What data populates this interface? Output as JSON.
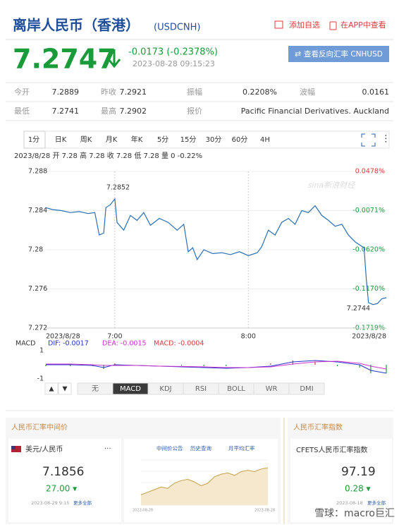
{
  "header": {
    "title": "离岸人民币（香港）",
    "code": "(USDCNH)",
    "add": "添加自选",
    "app": "在APP中查看"
  },
  "quote": {
    "price": "7.2747",
    "change": "-0.0173 (-0.2378%)",
    "time": "2023-08-28 09:15:23",
    "button": "查看反向汇率 CNHUSD"
  },
  "stats": [
    [
      "今开",
      "7.2889",
      "昨收",
      "7.2921",
      "振幅",
      "0.2208%",
      "波幅",
      "0.0161"
    ],
    [
      "最低",
      "7.2741",
      "最高",
      "7.2902",
      "报价",
      "Pacific Financial Derivatives. Auckland"
    ]
  ],
  "tabs": [
    "1分",
    "日K",
    "周K",
    "月K",
    "年K",
    "5分",
    "15分",
    "30分",
    "60分",
    "4H"
  ],
  "info": "2023/8/28 开 7.28 高 7.28 收 7.28 低 7.28 量 0 -0.22%",
  "chart_data": [
    {
      "type": "line",
      "watermark": "sina新浪财经",
      "color": "#2a6fb5",
      "grid": true,
      "x": [
        389,
        392,
        396,
        400,
        404,
        408,
        411,
        413,
        415,
        416,
        418,
        420,
        421,
        424,
        427,
        430,
        433,
        436,
        440,
        444,
        448,
        451,
        453,
        455,
        457,
        460,
        464,
        468,
        472,
        476,
        480,
        484,
        486,
        489,
        492,
        495,
        498,
        501,
        504,
        507,
        510,
        513,
        516,
        519,
        522,
        525,
        528,
        530,
        532,
        533,
        534,
        536,
        538,
        540,
        542
      ],
      "values": [
        7.2843,
        7.2841,
        7.284,
        7.2838,
        7.2839,
        7.2837,
        7.2838,
        7.2815,
        7.2817,
        7.2843,
        7.2846,
        7.2852,
        7.2828,
        7.282,
        7.2835,
        7.283,
        7.2838,
        7.2825,
        7.2832,
        7.2828,
        7.282,
        7.2826,
        7.2798,
        7.2802,
        7.279,
        7.28,
        7.2796,
        7.2797,
        7.2795,
        7.2798,
        7.2794,
        7.2797,
        7.2803,
        7.282,
        7.2815,
        7.2828,
        7.2832,
        7.2826,
        7.284,
        7.2838,
        7.2845,
        7.2835,
        7.283,
        7.2824,
        7.2826,
        7.2815,
        7.2808,
        7.2805,
        7.2802,
        7.277,
        7.2746,
        7.2744,
        7.2745,
        7.275,
        7.2751
      ],
      "xlim": [
        389,
        542
      ],
      "xticks": [
        {
          "value": 389,
          "label": "2023/8/28"
        },
        {
          "value": 420,
          "label": "7:00"
        },
        {
          "value": 480,
          "label": "8:00"
        },
        {
          "value": 542,
          "label": "2023/8/28"
        }
      ],
      "ylim": [
        7.272,
        7.288
      ],
      "yticks": [
        7.272,
        7.276,
        7.28,
        7.284,
        7.288
      ],
      "y2lim": [
        -0.1719,
        0.0478
      ],
      "y2ticks": [
        {
          "value": 0.0478,
          "label": "0.0478%"
        },
        {
          "value": -0.0071,
          "label": "-0.0071%"
        },
        {
          "value": -0.062,
          "label": "-0.0620%"
        },
        {
          "value": -0.117,
          "label": "-0.1170%"
        },
        {
          "value": -0.1719,
          "label": "-0.1719%"
        }
      ],
      "annotations": [
        {
          "label": "7.2852",
          "x": 420,
          "y": 7.2852
        },
        {
          "label": "7.2744",
          "x": 536,
          "y": 7.2744
        }
      ]
    },
    {
      "type": "macd",
      "title": "MACD",
      "dif_label": "DIF: -0.0017",
      "dea_label": "DEA: -0.0015",
      "macd_label": "MACD: -0.0004",
      "x": [
        389,
        400,
        410,
        415,
        420,
        430,
        440,
        450,
        460,
        470,
        480,
        490,
        500,
        510,
        520,
        530,
        535,
        542
      ],
      "series": [
        {
          "name": "DIF",
          "color": "#2233cc",
          "values": [
            0,
            0,
            -0.05,
            -0.2,
            0,
            -0.05,
            -0.1,
            -0.15,
            -0.2,
            -0.25,
            -0.2,
            -0.1,
            0.2,
            0.3,
            0.2,
            0,
            -0.4,
            -0.6
          ]
        },
        {
          "name": "DEA",
          "color": "#cc33cc",
          "values": [
            0.05,
            0.05,
            0,
            -0.05,
            -0.05,
            -0.05,
            -0.1,
            -0.12,
            -0.15,
            -0.2,
            -0.2,
            -0.15,
            0.05,
            0.2,
            0.25,
            0.1,
            -0.1,
            -0.3
          ]
        }
      ],
      "bars": [
        -0.1,
        -0.1,
        -0.1,
        -0.3,
        0.1,
        0,
        0,
        -0.06,
        -0.1,
        -0.1,
        0,
        0.1,
        0.3,
        0.2,
        -0.1,
        -0.2,
        -0.6,
        -0.6
      ],
      "xlim": [
        389,
        542
      ],
      "ylim": [
        -1.4,
        1.7
      ],
      "yticks": [
        1,
        -1
      ]
    },
    {
      "type": "mini-line",
      "color": "#c8a04a",
      "values": [
        7.08,
        7.1,
        7.12,
        7.14,
        7.13,
        7.17,
        7.19,
        7.2,
        7.18,
        7.15,
        7.17,
        7.22,
        7.24,
        7.25,
        7.23,
        7.26,
        7.27,
        7.26,
        7.28,
        7.29
      ],
      "ylim": [
        7.0,
        7.35
      ],
      "x_start": "2022-08-28",
      "x_end": "2023-08-28"
    }
  ],
  "indicators": [
    "无",
    "MACD",
    "KDJ",
    "RSI",
    "BOLL",
    "WR",
    "DMI"
  ],
  "bottom": {
    "left_title": "人民币汇率中间价",
    "pair": "美元/人民币",
    "more_dots": "···",
    "links": [
      "中间价公告",
      "历史查询",
      "月平均汇率"
    ],
    "mid_price": "7.1856",
    "mid_change": "27.00 ▾",
    "mid_date": "2023-08-29 9:15",
    "more": "更多全部",
    "right_title": "人民币汇率指数",
    "index_name": "CFETS人民币汇率指数",
    "index_value": "97.19",
    "index_change": "0.28 ▾",
    "index_date": "2023-08-18",
    "index_more": "更多全部",
    "watermark": "雪球：macro巨汇"
  }
}
